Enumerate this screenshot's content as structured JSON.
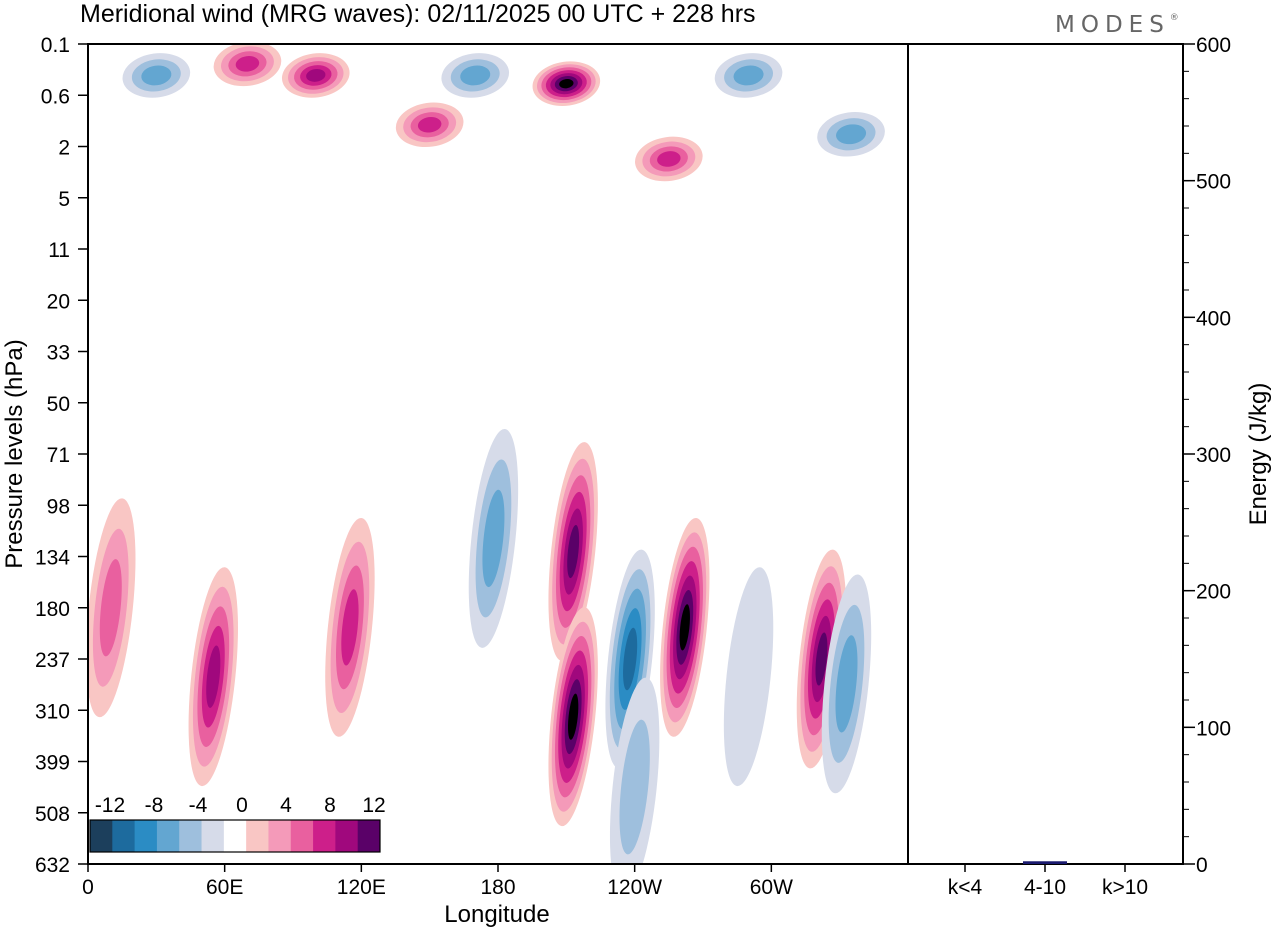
{
  "chart_data": [
    {
      "type": "heatmap",
      "title": "Meridional wind (MRG waves):  02/11/2025  00 UTC  + 228 hrs",
      "xlabel": "Longitude",
      "ylabel": "Pressure levels (hPa)",
      "x_ticks": [
        "0",
        "60E",
        "120E",
        "180",
        "120W",
        "60W"
      ],
      "x_tick_values": [
        0,
        60,
        120,
        180,
        240,
        300
      ],
      "xlim": [
        0,
        360
      ],
      "y_ticks": [
        "0.1",
        "0.6",
        "2",
        "5",
        "11",
        "20",
        "33",
        "50",
        "71",
        "98",
        "134",
        "180",
        "237",
        "310",
        "399",
        "508",
        "632"
      ],
      "y_axis_order": "top-to-bottom",
      "colorbar": {
        "ticks": [
          "-12",
          "-8",
          "-4",
          "0",
          "4",
          "8",
          "12"
        ],
        "levels": [
          -14,
          -12,
          -10,
          -8,
          -6,
          -4,
          -2,
          2,
          4,
          6,
          8,
          10,
          12,
          14
        ],
        "colors": [
          "#1c3f5c",
          "#1d6b9e",
          "#2b8cc4",
          "#63a6d1",
          "#9ebfdd",
          "#d6dbe9",
          "#ffffff",
          "#f9c6c4",
          "#f49ab9",
          "#e9609f",
          "#cd1f8a",
          "#a0087d",
          "#5a0168"
        ]
      },
      "features": [
        {
          "lon": 30,
          "p": "0.3",
          "value": -9
        },
        {
          "lon": 70,
          "p": "0.2",
          "value": 6
        },
        {
          "lon": 100,
          "p": "0.3",
          "value": 8
        },
        {
          "lon": 150,
          "p": "1.2",
          "value": 7
        },
        {
          "lon": 170,
          "p": "0.3",
          "value": -10
        },
        {
          "lon": 210,
          "p": "0.4",
          "value": 13
        },
        {
          "lon": 255,
          "p": "2.5",
          "value": 7
        },
        {
          "lon": 290,
          "p": "0.3",
          "value": -9
        },
        {
          "lon": 335,
          "p": "1.5",
          "value": -9
        },
        {
          "lon": 178,
          "p": "120",
          "value": -9
        },
        {
          "lon": 213,
          "p": "130",
          "value": 14
        },
        {
          "lon": 213,
          "p": "320",
          "value": 13
        },
        {
          "lon": 238,
          "p": "237",
          "value": -14
        },
        {
          "lon": 262,
          "p": "200",
          "value": 13
        },
        {
          "lon": 290,
          "p": "260",
          "value": -6
        },
        {
          "lon": 322,
          "p": "237",
          "value": 14
        },
        {
          "lon": 333,
          "p": "270",
          "value": -10
        },
        {
          "lon": 55,
          "p": "260",
          "value": 9
        },
        {
          "lon": 115,
          "p": "200",
          "value": 6
        },
        {
          "lon": 10,
          "p": "180",
          "value": 5
        },
        {
          "lon": 240,
          "p": "450",
          "value": -8
        }
      ]
    },
    {
      "type": "bar",
      "ylabel": "Energy (J/kg)",
      "categories": [
        "k<4",
        "4-10",
        "k>10"
      ],
      "values": [
        0,
        2,
        0
      ],
      "ylim": [
        0,
        600
      ],
      "y_ticks": [
        "0",
        "100",
        "200",
        "300",
        "400",
        "500",
        "600"
      ]
    }
  ],
  "brand": "MODES",
  "brand_mark": "®"
}
